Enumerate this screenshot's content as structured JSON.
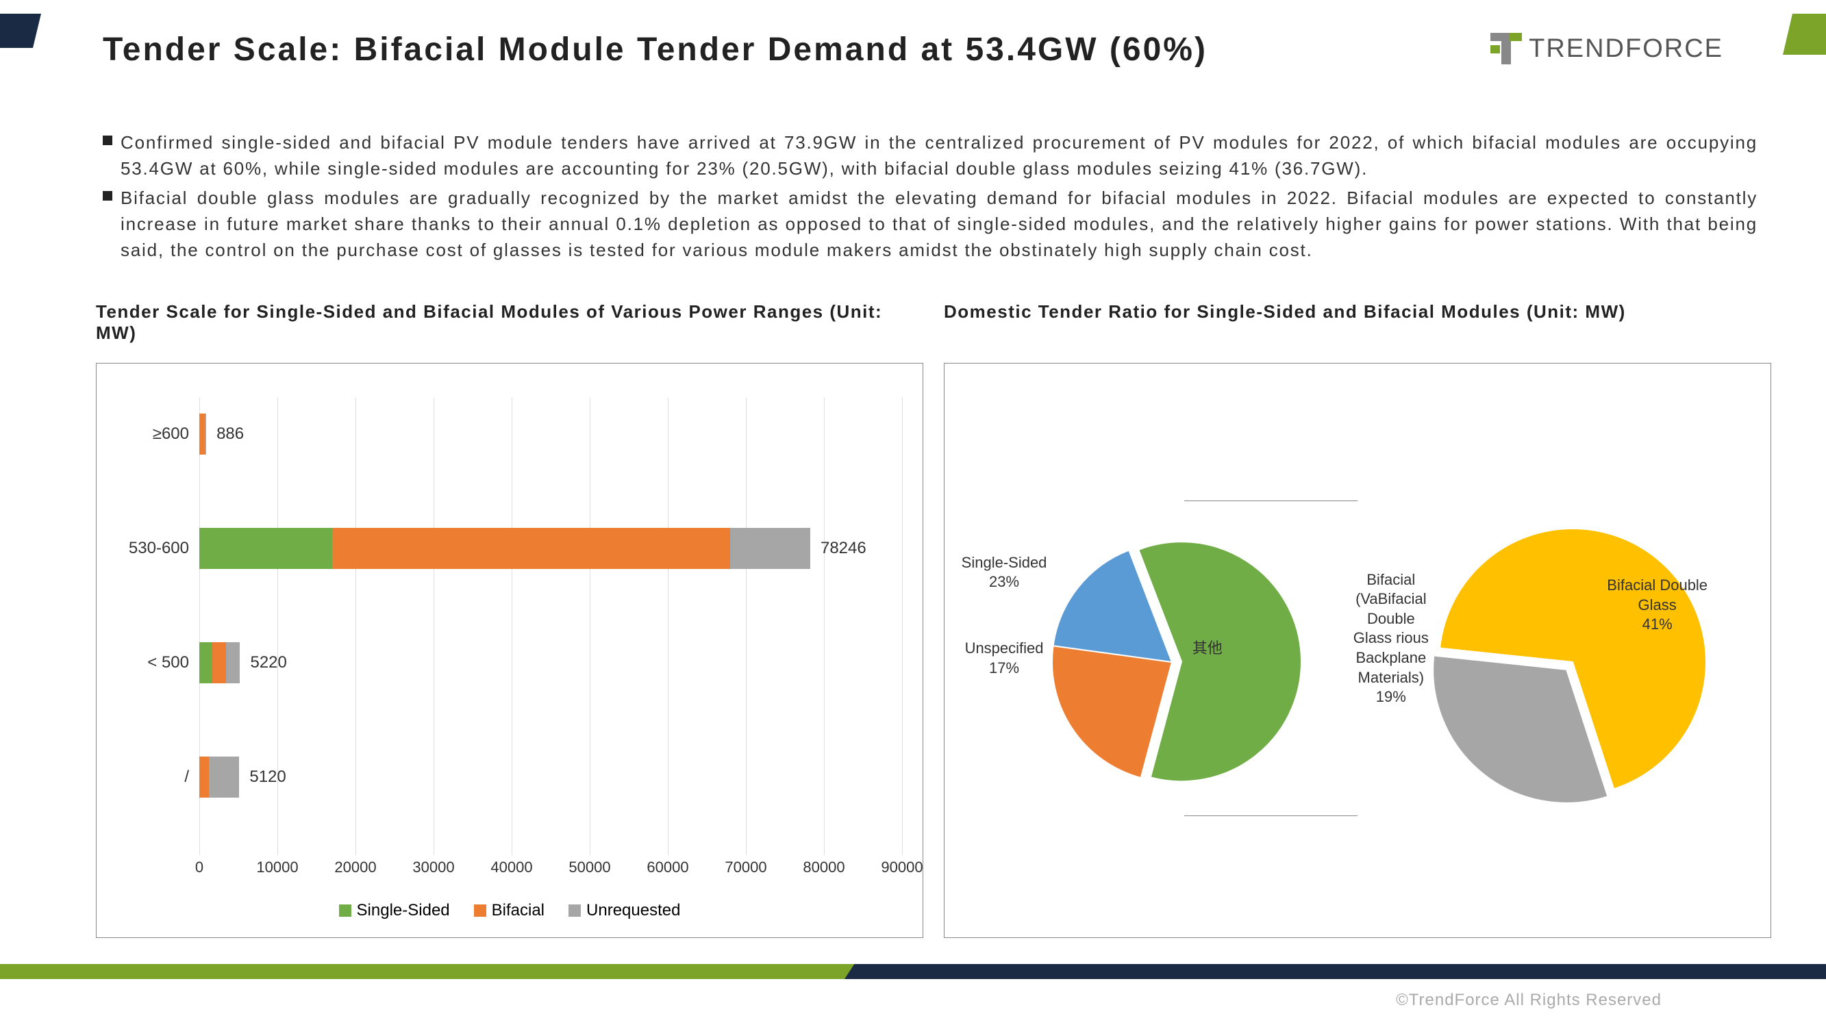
{
  "title": "Tender Scale: Bifacial Module Tender Demand at 53.4GW (60%)",
  "logo_text": "TRENDFORCE",
  "bullets": [
    "Confirmed single-sided and bifacial PV module tenders have arrived at 73.9GW in the centralized procurement of PV modules for 2022, of which bifacial modules are occupying 53.4GW at 60%, while single-sided modules are accounting for 23% (20.5GW), with bifacial double glass modules seizing 41% (36.7GW).",
    "Bifacial double glass modules are gradually recognized by the market amidst the elevating demand for bifacial modules in 2022. Bifacial modules are expected to constantly increase in future market share thanks to their annual 0.1% depletion as opposed to that of single-sided modules, and the relatively higher gains for power stations. With that being said, the control on the purchase cost of glasses is tested for various module makers amidst the obstinately high supply chain cost."
  ],
  "bar_chart": {
    "title": "Tender Scale for Single-Sided and Bifacial Modules of Various Power Ranges (Unit: MW)",
    "type": "stacked_horizontal_bar",
    "x_max": 90000,
    "x_tick_step": 10000,
    "x_ticks": [
      "0",
      "10000",
      "20000",
      "30000",
      "40000",
      "50000",
      "60000",
      "70000",
      "80000",
      "90000"
    ],
    "categories": [
      "≥600",
      "530-600",
      "< 500",
      "/"
    ],
    "category_positions_pct": [
      8,
      33,
      58,
      83
    ],
    "series": [
      {
        "name": "Single-Sided",
        "color": "#70ad47"
      },
      {
        "name": "Bifacial",
        "color": "#ed7d31"
      },
      {
        "name": "Unrequested",
        "color": "#a6a6a6"
      }
    ],
    "values": [
      [
        0,
        700,
        186
      ],
      [
        17000,
        51000,
        10246
      ],
      [
        1700,
        1700,
        1820
      ],
      [
        0,
        1200,
        3920
      ]
    ],
    "totals": [
      "886",
      "78246",
      "5220",
      "5120"
    ],
    "grid_color": "#dddddd",
    "label_fontsize": 24
  },
  "pie_charts": {
    "title": "Domestic Tender Ratio for Single-Sided and Bifacial Modules (Unit: MW)",
    "left": {
      "type": "pie",
      "exploded_index": 2,
      "slices": [
        {
          "label": "Single-Sided",
          "pct": 23,
          "color": "#ed7d31",
          "display": "Single-Sided\n23%"
        },
        {
          "label": "Unspecified",
          "pct": 17,
          "color": "#5b9bd5",
          "display": "Unspecified\n17%"
        },
        {
          "label": "其他",
          "pct": 60,
          "color": "#70ad47",
          "display": "其他"
        }
      ]
    },
    "right": {
      "type": "pie",
      "exploded_index": 0,
      "slices": [
        {
          "label": "Bifacial (Various Backplane Materials)",
          "pct": 19,
          "color": "#a6a6a6",
          "display": "Bifacial\n(VaBifacial\nDouble\nGlass rious\nBackplane\nMaterials)\n19%"
        },
        {
          "label": "Bifacial Double Glass",
          "pct": 41,
          "color": "#ffc000",
          "display": "Bifacial Double\nGlass\n41%"
        }
      ],
      "total_comment": "right pie slices sum to 60 (the 其他 expansion)"
    }
  },
  "copyright": "©TrendForce All Rights Reserved",
  "palette": {
    "green": "#70ad47",
    "orange": "#ed7d31",
    "gray": "#a6a6a6",
    "blue": "#5b9bd5",
    "yellow": "#ffc000",
    "dark_navy": "#1a2a44",
    "brand_green": "#7ba428"
  }
}
